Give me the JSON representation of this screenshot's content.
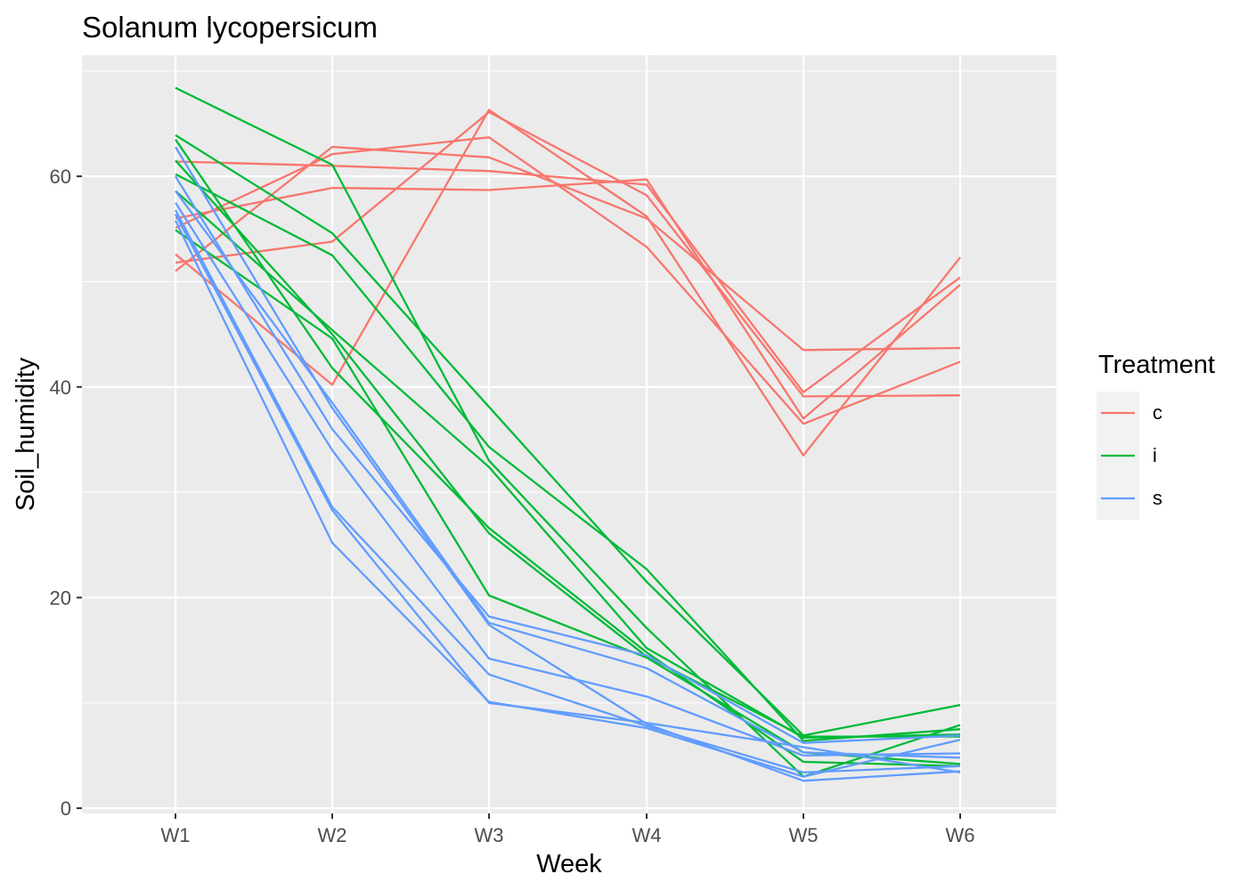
{
  "chart_data": {
    "type": "line",
    "title": "Solanum lycopersicum",
    "xlabel": "Week",
    "ylabel": "Soil_humidity",
    "categories": [
      "W1",
      "W2",
      "W3",
      "W4",
      "W5",
      "W6"
    ],
    "y_ticks": [
      "0",
      "20",
      "40",
      "60"
    ],
    "ylim": [
      -0.5,
      71.5
    ],
    "grid": true,
    "legend": {
      "title": "Treatment",
      "position": "right",
      "entries": [
        {
          "label": "c",
          "color": "#F8766D"
        },
        {
          "label": "i",
          "color": "#00BA38"
        },
        {
          "label": "s",
          "color": "#619CFF"
        }
      ]
    },
    "series": [
      {
        "treatment": "c",
        "values": [
          61.4,
          61.0,
          60.5,
          59.2,
          39.5,
          50.4
        ]
      },
      {
        "treatment": "c",
        "values": [
          51.0,
          62.8,
          61.8,
          56.0,
          43.5,
          43.7
        ]
      },
      {
        "treatment": "c",
        "values": [
          56.0,
          58.9,
          58.7,
          59.7,
          37.0,
          49.7
        ]
      },
      {
        "treatment": "c",
        "values": [
          52.6,
          40.2,
          66.3,
          56.2,
          33.5,
          52.3
        ]
      },
      {
        "treatment": "c",
        "values": [
          51.8,
          53.8,
          66.1,
          58.2,
          39.1,
          39.2
        ]
      },
      {
        "treatment": "c",
        "values": [
          55.1,
          62.1,
          63.7,
          53.3,
          36.5,
          42.4
        ]
      },
      {
        "treatment": "i",
        "values": [
          68.4,
          61.1,
          33.0,
          17.1,
          3.0,
          7.9
        ]
      },
      {
        "treatment": "i",
        "values": [
          63.9,
          54.6,
          38.1,
          21.5,
          6.9,
          9.8
        ]
      },
      {
        "treatment": "i",
        "values": [
          60.2,
          52.5,
          34.3,
          22.7,
          6.4,
          7.5
        ]
      },
      {
        "treatment": "i",
        "values": [
          54.9,
          44.6,
          20.2,
          14.3,
          5.3,
          4.2
        ]
      },
      {
        "treatment": "i",
        "values": [
          58.6,
          45.4,
          32.4,
          15.2,
          6.7,
          7.0
        ]
      },
      {
        "treatment": "i",
        "values": [
          63.5,
          41.8,
          26.6,
          14.8,
          4.4,
          4.0
        ]
      },
      {
        "treatment": "i",
        "values": [
          61.5,
          45.0,
          26.1,
          14.4,
          6.8,
          6.8
        ]
      },
      {
        "treatment": "s",
        "values": [
          62.8,
          38.0,
          17.4,
          8.0,
          2.6,
          3.5
        ]
      },
      {
        "treatment": "s",
        "values": [
          60.0,
          36.0,
          18.2,
          14.5,
          6.2,
          6.9
        ]
      },
      {
        "treatment": "s",
        "values": [
          57.5,
          34.0,
          14.2,
          10.6,
          5.0,
          5.2
        ]
      },
      {
        "treatment": "s",
        "values": [
          56.8,
          28.6,
          12.7,
          7.8,
          3.4,
          4.0
        ]
      },
      {
        "treatment": "s",
        "values": [
          55.8,
          25.2,
          10.1,
          7.6,
          3.0,
          6.5
        ]
      },
      {
        "treatment": "s",
        "values": [
          58.6,
          38.5,
          17.6,
          13.3,
          5.3,
          4.8
        ]
      },
      {
        "treatment": "s",
        "values": [
          56.4,
          28.3,
          10.0,
          8.1,
          5.8,
          3.4
        ]
      }
    ]
  }
}
